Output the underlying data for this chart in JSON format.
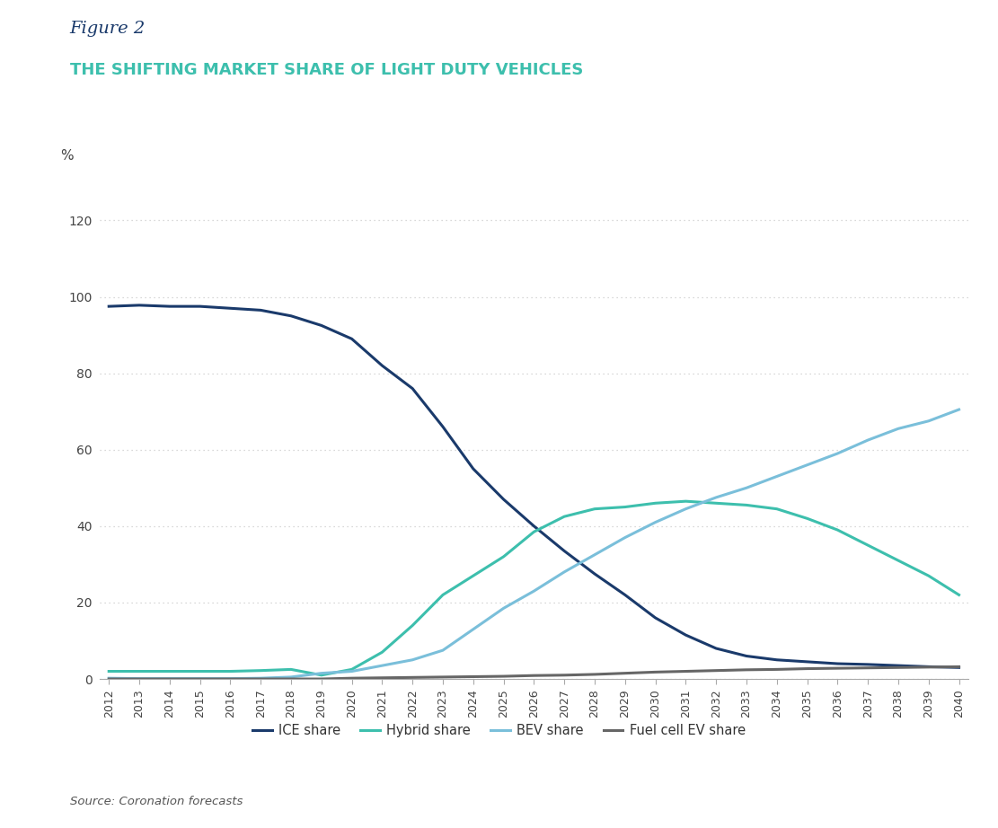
{
  "figure_label": "Figure 2",
  "title": "THE SHIFTING MARKET SHARE OF LIGHT DUTY VEHICLES",
  "source": "Source: Coronation forecasts",
  "ylabel": "%",
  "years": [
    2012,
    2013,
    2014,
    2015,
    2016,
    2017,
    2018,
    2019,
    2020,
    2021,
    2022,
    2023,
    2024,
    2025,
    2026,
    2027,
    2028,
    2029,
    2030,
    2031,
    2032,
    2033,
    2034,
    2035,
    2036,
    2037,
    2038,
    2039,
    2040
  ],
  "ice_share": [
    97.5,
    97.8,
    97.5,
    97.5,
    97.0,
    96.5,
    95.0,
    92.5,
    89.0,
    82.0,
    76.0,
    66.0,
    55.0,
    47.0,
    40.0,
    33.5,
    27.5,
    22.0,
    16.0,
    11.5,
    8.0,
    6.0,
    5.0,
    4.5,
    4.0,
    3.8,
    3.5,
    3.2,
    3.0
  ],
  "hybrid_share": [
    2.0,
    2.0,
    2.0,
    2.0,
    2.0,
    2.2,
    2.5,
    1.0,
    2.5,
    7.0,
    14.0,
    22.0,
    27.0,
    32.0,
    38.5,
    42.5,
    44.5,
    45.0,
    46.0,
    46.5,
    46.0,
    45.5,
    44.5,
    42.0,
    39.0,
    35.0,
    31.0,
    27.0,
    22.0
  ],
  "bev_share": [
    0.2,
    0.1,
    0.1,
    0.1,
    0.1,
    0.2,
    0.5,
    1.5,
    2.0,
    3.5,
    5.0,
    7.5,
    13.0,
    18.5,
    23.0,
    28.0,
    32.5,
    37.0,
    41.0,
    44.5,
    47.5,
    50.0,
    53.0,
    56.0,
    59.0,
    62.5,
    65.5,
    67.5,
    70.5
  ],
  "fuel_cell_share": [
    0.0,
    0.0,
    0.0,
    0.0,
    0.0,
    0.0,
    0.0,
    0.0,
    0.2,
    0.3,
    0.4,
    0.5,
    0.6,
    0.7,
    0.9,
    1.0,
    1.2,
    1.5,
    1.8,
    2.0,
    2.2,
    2.4,
    2.5,
    2.7,
    2.8,
    2.9,
    3.0,
    3.1,
    3.2
  ],
  "ice_color": "#1a3a6b",
  "hybrid_color": "#3dbfad",
  "bev_color": "#7abfda",
  "fuel_cell_color": "#666666",
  "grid_color": "#cccccc",
  "title_color": "#3dbfad",
  "figure_label_color": "#1a3a6b",
  "ylim": [
    0,
    130
  ],
  "yticks": [
    0,
    20,
    40,
    60,
    80,
    100,
    120
  ],
  "bg_color": "#ffffff",
  "line_width": 2.2
}
